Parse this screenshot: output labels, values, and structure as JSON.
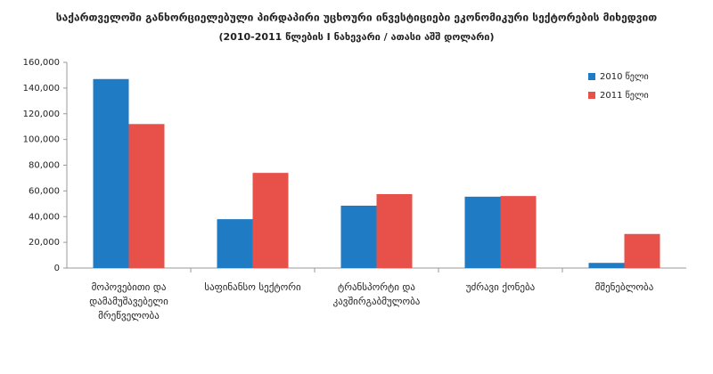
{
  "chart_data": {
    "type": "bar",
    "title": "საქართველოში განხორციელებული პირდაპირი უცხოური ინვესტიციები ეკონომიკური სექტორების მიხედვით",
    "subtitle": "(2010-2011 წლების I ნახევარი / ათასი აშშ დოლარი)",
    "categories": [
      "მოპოვებითი და დამამუშავებელი მრეწველობა",
      "საფინანსო სექტორი",
      "ტრანსპორტი და კავშირგაბმულობა",
      "უძრავი ქონება",
      "მშენებლობა"
    ],
    "series": [
      {
        "name": "2010 წელი",
        "color": "#1f7bc4",
        "values": [
          147000,
          38000,
          48500,
          55500,
          4000
        ]
      },
      {
        "name": "2011 წელი",
        "color": "#e8504a",
        "values": [
          112000,
          74000,
          57500,
          56000,
          26500
        ]
      }
    ],
    "ylim": [
      0,
      160000
    ],
    "yticks": [
      0,
      {
        "value": 20000,
        "label": "20,000"
      },
      {
        "value": 40000,
        "label": "40,000"
      },
      {
        "value": 60000,
        "label": "60,000"
      },
      {
        "value": 80000,
        "label": "80,000"
      },
      {
        "value": 100000,
        "label": "100,000"
      },
      {
        "value": 120000,
        "label": "120,000"
      },
      {
        "value": 140000,
        "label": "140,000"
      },
      {
        "value": 160000,
        "label": "160,000"
      }
    ],
    "grid": false,
    "legend": "top-right"
  }
}
